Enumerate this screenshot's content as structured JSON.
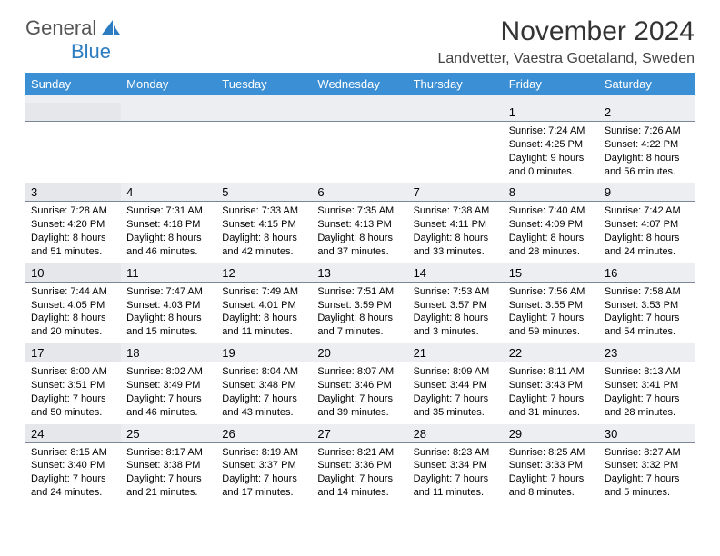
{
  "logo": {
    "word1": "General",
    "word2": "Blue"
  },
  "title": "November 2024",
  "location": "Landvetter, Vaestra Goetaland, Sweden",
  "header_bg": "#3b8fd4",
  "daynum_bg": "#eceef1",
  "daynum_border": "#7a8896",
  "text_color": "#000000",
  "weekdays": [
    "Sunday",
    "Monday",
    "Tuesday",
    "Wednesday",
    "Thursday",
    "Friday",
    "Saturday"
  ],
  "weeks": [
    {
      "days": [
        {
          "num": "",
          "text": ""
        },
        {
          "num": "",
          "text": ""
        },
        {
          "num": "",
          "text": ""
        },
        {
          "num": "",
          "text": ""
        },
        {
          "num": "",
          "text": ""
        },
        {
          "num": "1",
          "sunrise": "7:24 AM",
          "sunset": "4:25 PM",
          "daylight": "9 hours and 0 minutes."
        },
        {
          "num": "2",
          "sunrise": "7:26 AM",
          "sunset": "4:22 PM",
          "daylight": "8 hours and 56 minutes."
        }
      ]
    },
    {
      "days": [
        {
          "num": "3",
          "sunrise": "7:28 AM",
          "sunset": "4:20 PM",
          "daylight": "8 hours and 51 minutes."
        },
        {
          "num": "4",
          "sunrise": "7:31 AM",
          "sunset": "4:18 PM",
          "daylight": "8 hours and 46 minutes."
        },
        {
          "num": "5",
          "sunrise": "7:33 AM",
          "sunset": "4:15 PM",
          "daylight": "8 hours and 42 minutes."
        },
        {
          "num": "6",
          "sunrise": "7:35 AM",
          "sunset": "4:13 PM",
          "daylight": "8 hours and 37 minutes."
        },
        {
          "num": "7",
          "sunrise": "7:38 AM",
          "sunset": "4:11 PM",
          "daylight": "8 hours and 33 minutes."
        },
        {
          "num": "8",
          "sunrise": "7:40 AM",
          "sunset": "4:09 PM",
          "daylight": "8 hours and 28 minutes."
        },
        {
          "num": "9",
          "sunrise": "7:42 AM",
          "sunset": "4:07 PM",
          "daylight": "8 hours and 24 minutes."
        }
      ]
    },
    {
      "days": [
        {
          "num": "10",
          "sunrise": "7:44 AM",
          "sunset": "4:05 PM",
          "daylight": "8 hours and 20 minutes."
        },
        {
          "num": "11",
          "sunrise": "7:47 AM",
          "sunset": "4:03 PM",
          "daylight": "8 hours and 15 minutes."
        },
        {
          "num": "12",
          "sunrise": "7:49 AM",
          "sunset": "4:01 PM",
          "daylight": "8 hours and 11 minutes."
        },
        {
          "num": "13",
          "sunrise": "7:51 AM",
          "sunset": "3:59 PM",
          "daylight": "8 hours and 7 minutes."
        },
        {
          "num": "14",
          "sunrise": "7:53 AM",
          "sunset": "3:57 PM",
          "daylight": "8 hours and 3 minutes."
        },
        {
          "num": "15",
          "sunrise": "7:56 AM",
          "sunset": "3:55 PM",
          "daylight": "7 hours and 59 minutes."
        },
        {
          "num": "16",
          "sunrise": "7:58 AM",
          "sunset": "3:53 PM",
          "daylight": "7 hours and 54 minutes."
        }
      ]
    },
    {
      "days": [
        {
          "num": "17",
          "sunrise": "8:00 AM",
          "sunset": "3:51 PM",
          "daylight": "7 hours and 50 minutes."
        },
        {
          "num": "18",
          "sunrise": "8:02 AM",
          "sunset": "3:49 PM",
          "daylight": "7 hours and 46 minutes."
        },
        {
          "num": "19",
          "sunrise": "8:04 AM",
          "sunset": "3:48 PM",
          "daylight": "7 hours and 43 minutes."
        },
        {
          "num": "20",
          "sunrise": "8:07 AM",
          "sunset": "3:46 PM",
          "daylight": "7 hours and 39 minutes."
        },
        {
          "num": "21",
          "sunrise": "8:09 AM",
          "sunset": "3:44 PM",
          "daylight": "7 hours and 35 minutes."
        },
        {
          "num": "22",
          "sunrise": "8:11 AM",
          "sunset": "3:43 PM",
          "daylight": "7 hours and 31 minutes."
        },
        {
          "num": "23",
          "sunrise": "8:13 AM",
          "sunset": "3:41 PM",
          "daylight": "7 hours and 28 minutes."
        }
      ]
    },
    {
      "days": [
        {
          "num": "24",
          "sunrise": "8:15 AM",
          "sunset": "3:40 PM",
          "daylight": "7 hours and 24 minutes."
        },
        {
          "num": "25",
          "sunrise": "8:17 AM",
          "sunset": "3:38 PM",
          "daylight": "7 hours and 21 minutes."
        },
        {
          "num": "26",
          "sunrise": "8:19 AM",
          "sunset": "3:37 PM",
          "daylight": "7 hours and 17 minutes."
        },
        {
          "num": "27",
          "sunrise": "8:21 AM",
          "sunset": "3:36 PM",
          "daylight": "7 hours and 14 minutes."
        },
        {
          "num": "28",
          "sunrise": "8:23 AM",
          "sunset": "3:34 PM",
          "daylight": "7 hours and 11 minutes."
        },
        {
          "num": "29",
          "sunrise": "8:25 AM",
          "sunset": "3:33 PM",
          "daylight": "7 hours and 8 minutes."
        },
        {
          "num": "30",
          "sunrise": "8:27 AM",
          "sunset": "3:32 PM",
          "daylight": "7 hours and 5 minutes."
        }
      ]
    }
  ],
  "labels": {
    "sunrise": "Sunrise: ",
    "sunset": "Sunset: ",
    "daylight": "Daylight: "
  }
}
